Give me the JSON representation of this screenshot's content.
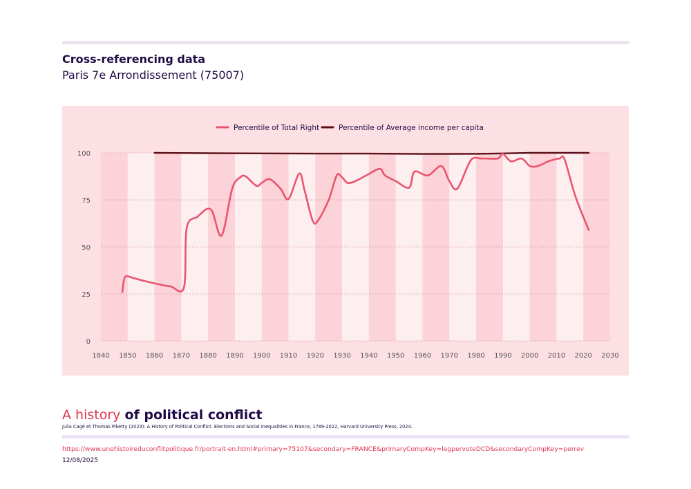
{
  "header": {
    "title": "Cross-referencing data",
    "subtitle": "Paris 7e Arrondissement (75007)"
  },
  "footer": {
    "brand_light": "A history ",
    "brand_bold": "of political conflict",
    "credit": "Julia Cagé et Thomas Piketty (2023): A History of Political Conflict. Elections and Social Inequalities in France, 1789-2022, Harvard University Press, 2024.",
    "url": "https://www.unehistoireduconflitpolitique.fr/portrait-en.html#primary=75107&secondary=FRANCE&primaryCompKey=legpervoteDCD&secondaryCompKey=perrev",
    "date": "12/08/2025"
  },
  "colors": {
    "series_right": "#e8556e",
    "series_income": "#5c1018",
    "panel_bg": "#fde0e4",
    "band_light": "#fdeef0",
    "band_dark": "#fbd3d9",
    "grid": "#cf8a94",
    "axis_text": "#555555",
    "accent_bar": "#ece4f5"
  },
  "chart_data": {
    "type": "line",
    "xlim": [
      1840,
      2030
    ],
    "ylim": [
      0,
      100
    ],
    "xticks": [
      1840,
      1850,
      1860,
      1870,
      1880,
      1890,
      1900,
      1910,
      1920,
      1930,
      1940,
      1950,
      1960,
      1970,
      1980,
      1990,
      2000,
      2010,
      2020,
      2030
    ],
    "yticks": [
      0,
      25,
      50,
      75,
      100
    ],
    "grid": "horizontal dotted",
    "legend_position": "top",
    "series": [
      {
        "name": "Percentile of Total Right",
        "color": "#e8556e",
        "points": [
          [
            1848,
            26
          ],
          [
            1849,
            34
          ],
          [
            1852,
            33.5
          ],
          [
            1856,
            32
          ],
          [
            1862,
            30
          ],
          [
            1866,
            29
          ],
          [
            1871,
            28.5
          ],
          [
            1872,
            60
          ],
          [
            1876,
            66
          ],
          [
            1881,
            70
          ],
          [
            1885,
            56
          ],
          [
            1889,
            81
          ],
          [
            1892,
            87
          ],
          [
            1894,
            87.5
          ],
          [
            1898,
            82.5
          ],
          [
            1900,
            84
          ],
          [
            1903,
            86
          ],
          [
            1907,
            81
          ],
          [
            1910,
            75.5
          ],
          [
            1914,
            89
          ],
          [
            1916,
            80
          ],
          [
            1919,
            64
          ],
          [
            1921,
            64
          ],
          [
            1925,
            75
          ],
          [
            1928,
            88
          ],
          [
            1930,
            87
          ],
          [
            1932,
            84
          ],
          [
            1935,
            85
          ],
          [
            1939,
            88
          ],
          [
            1944,
            91.5
          ],
          [
            1946,
            88
          ],
          [
            1950,
            85
          ],
          [
            1955,
            81.5
          ],
          [
            1957,
            90
          ],
          [
            1962,
            88
          ],
          [
            1967,
            93
          ],
          [
            1970,
            85
          ],
          [
            1973,
            81
          ],
          [
            1978,
            96
          ],
          [
            1982,
            97
          ],
          [
            1988,
            97
          ],
          [
            1990,
            99.5
          ],
          [
            1993,
            95.5
          ],
          [
            1997,
            97
          ],
          [
            2000,
            93
          ],
          [
            2003,
            93
          ],
          [
            2007,
            95.5
          ],
          [
            2011,
            97
          ],
          [
            2013,
            96.5
          ],
          [
            2017,
            77
          ],
          [
            2022,
            59
          ]
        ]
      },
      {
        "name": "Percentile of Average income per capita",
        "color": "#5c1018",
        "points": [
          [
            1860,
            100
          ],
          [
            1880,
            99.8
          ],
          [
            1900,
            99.7
          ],
          [
            1920,
            99.6
          ],
          [
            1940,
            99.6
          ],
          [
            1960,
            99.4
          ],
          [
            1980,
            99.5
          ],
          [
            1990,
            99.7
          ],
          [
            2000,
            100
          ],
          [
            2022,
            100
          ]
        ]
      }
    ]
  }
}
